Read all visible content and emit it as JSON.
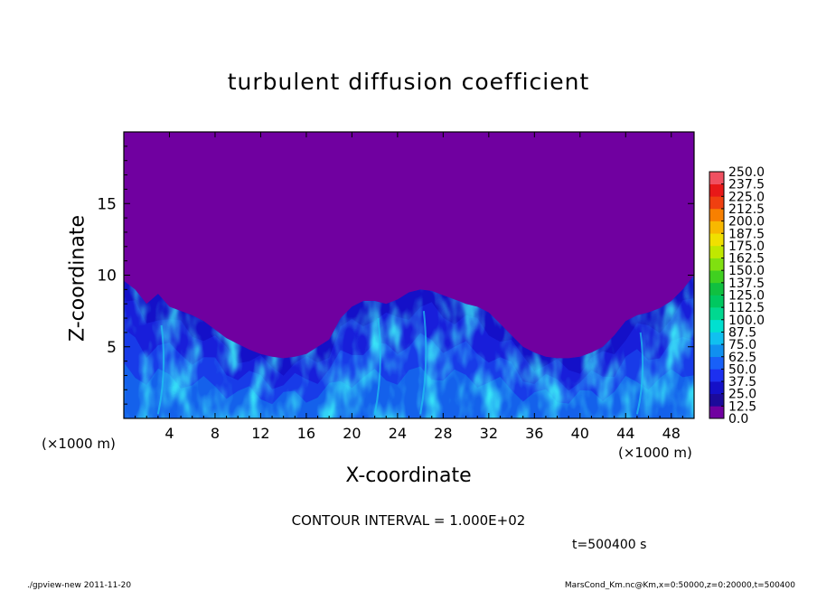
{
  "window": {
    "title": "turbulent diffusion coefficient"
  },
  "labels": {
    "x_unit": "(×1000 m)",
    "x_unit_right": "(×1000 m)",
    "contour_interval": "CONTOUR INTERVAL = 1.000E+02",
    "time": "t=500400 s",
    "footer_left": "./gpview-new   2011-11-20",
    "footer_right": "MarsCond_Km.nc@Km,x=0:50000,z=0:20000,t=500400"
  },
  "chart_data": {
    "type": "heatmap",
    "title": "turbulent diffusion coefficient",
    "xlabel": "X-coordinate",
    "ylabel": "Z-coordinate",
    "xlim": [
      0,
      50
    ],
    "ylim": [
      0,
      20
    ],
    "x_ticks": [
      4,
      8,
      12,
      16,
      20,
      24,
      28,
      32,
      36,
      40,
      44,
      48
    ],
    "y_ticks": [
      5,
      10,
      15
    ],
    "grid": false,
    "background_value": 0.0,
    "turbulent_top_profile": {
      "x": [
        0,
        1,
        2,
        3,
        4,
        5,
        6,
        7,
        8,
        9,
        10,
        11,
        12,
        13,
        14,
        15,
        16,
        17,
        18,
        19,
        20,
        21,
        22,
        23,
        24,
        25,
        26,
        27,
        28,
        29,
        30,
        31,
        32,
        33,
        34,
        35,
        36,
        37,
        38,
        39,
        40,
        41,
        42,
        43,
        44,
        45,
        46,
        47,
        48,
        49,
        50
      ],
      "z": [
        9.6,
        9.0,
        8.0,
        8.7,
        7.8,
        7.5,
        7.2,
        6.8,
        6.2,
        5.6,
        5.2,
        4.8,
        4.5,
        4.3,
        4.2,
        4.3,
        4.5,
        5.0,
        5.5,
        7.0,
        7.8,
        8.2,
        8.2,
        8.0,
        8.3,
        8.8,
        9.0,
        8.9,
        8.6,
        8.3,
        8.0,
        7.8,
        7.4,
        6.6,
        5.8,
        5.0,
        4.6,
        4.3,
        4.2,
        4.2,
        4.3,
        4.6,
        5.0,
        5.8,
        6.8,
        7.2,
        7.4,
        7.7,
        8.2,
        9.0,
        10.0
      ]
    },
    "colorbar": {
      "ticks": [
        "0.0",
        "12.5",
        "25.0",
        "37.5",
        "50.0",
        "62.5",
        "75.0",
        "87.5",
        "100.0",
        "112.5",
        "125.0",
        "137.5",
        "150.0",
        "162.5",
        "175.0",
        "187.5",
        "200.0",
        "212.5",
        "225.0",
        "237.5",
        "250.0"
      ],
      "colors": [
        "#7000a0",
        "#1c0a9a",
        "#1410c8",
        "#1c30f0",
        "#1860f8",
        "#1090f0",
        "#10c0f0",
        "#00e0d0",
        "#00d890",
        "#00c860",
        "#10c040",
        "#40d020",
        "#80e010",
        "#c0e800",
        "#f0e000",
        "#f8b800",
        "#f88000",
        "#f04010",
        "#e81818",
        "#f05060"
      ]
    }
  }
}
